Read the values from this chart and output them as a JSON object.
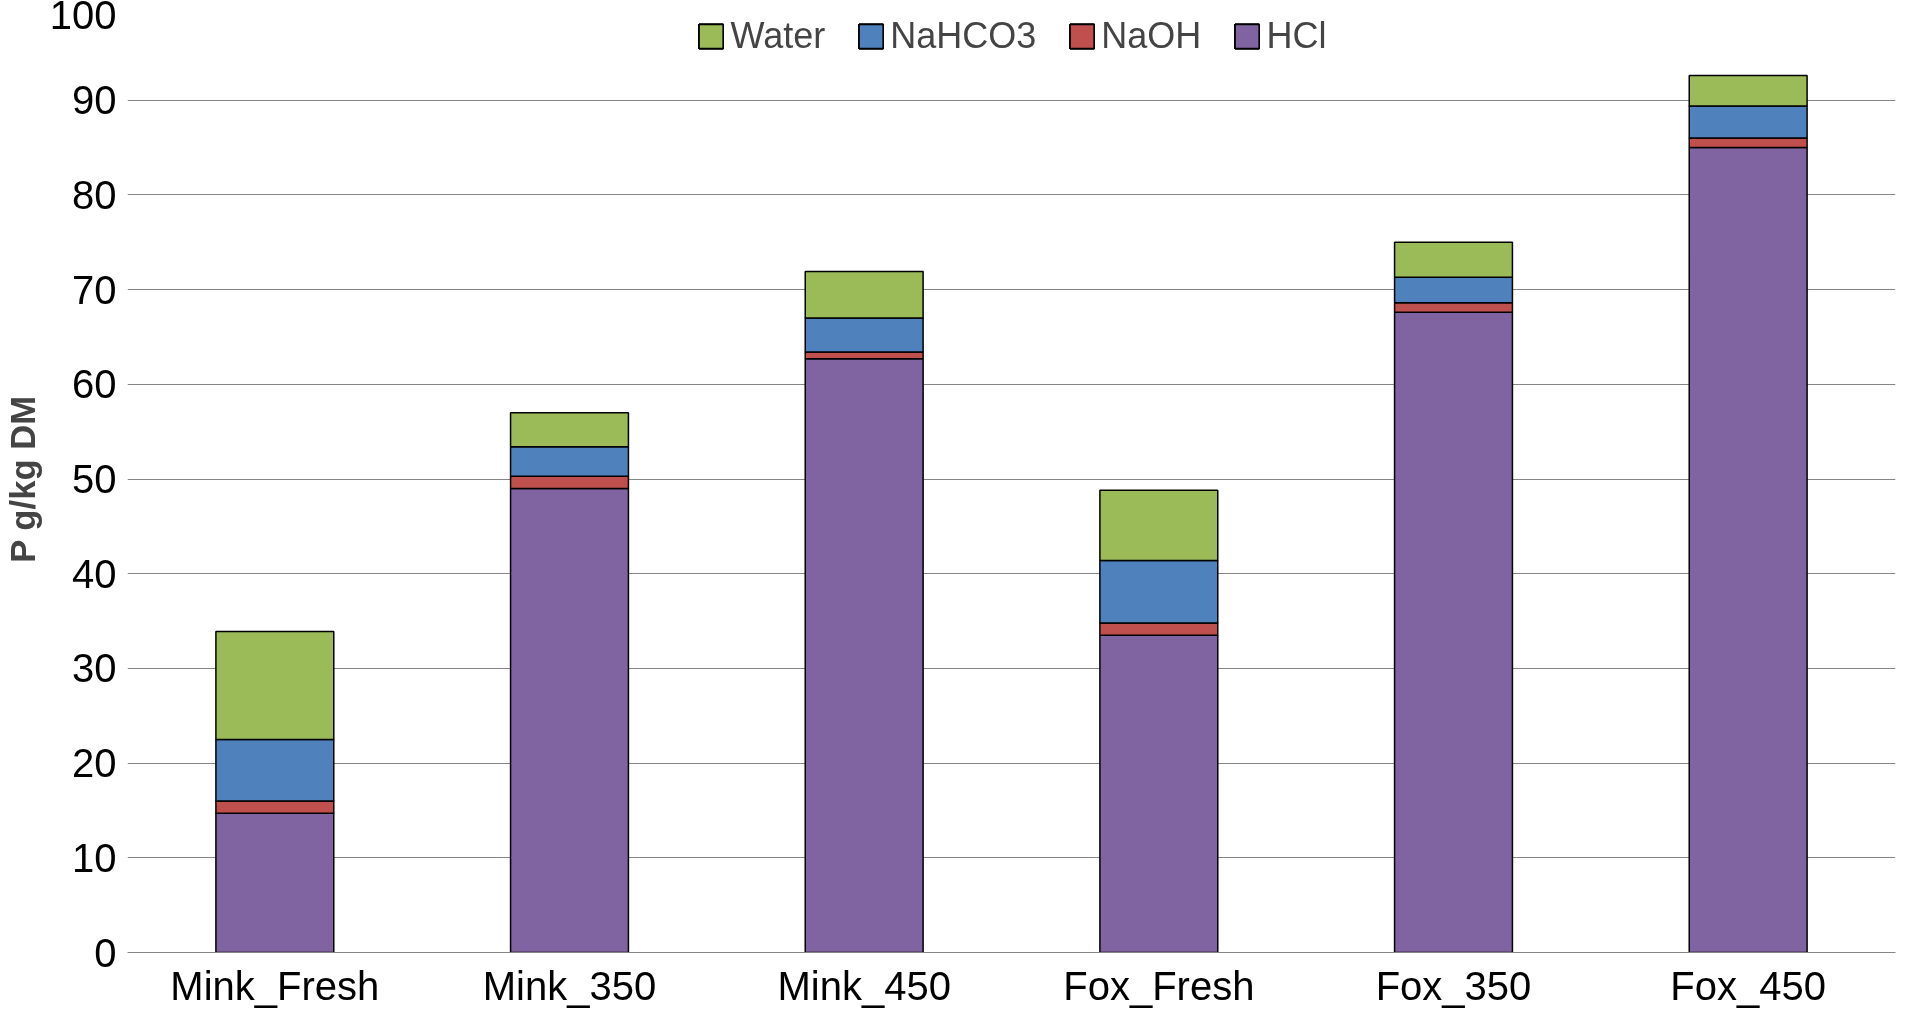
{
  "chart_data": {
    "type": "bar",
    "stacked": true,
    "ylabel": "P g/kg DM",
    "categories": [
      "Mink_Fresh",
      "Mink_350",
      "Mink_450",
      "Fox_Fresh",
      "Fox_350",
      "Fox_450"
    ],
    "series": [
      {
        "name": "HCl",
        "color": "#8064a2",
        "values": [
          14.7,
          49.0,
          62.7,
          33.5,
          67.6,
          85.0
        ]
      },
      {
        "name": "NaOH",
        "color": "#c0504d",
        "values": [
          1.3,
          1.3,
          0.7,
          1.3,
          1.0,
          1.0
        ]
      },
      {
        "name": "NaHCO3",
        "color": "#4f81bd",
        "values": [
          6.5,
          3.1,
          3.6,
          6.6,
          2.7,
          3.4
        ]
      },
      {
        "name": "Water",
        "color": "#9bbb59",
        "values": [
          11.4,
          3.6,
          4.9,
          7.4,
          3.7,
          3.2
        ]
      }
    ],
    "ylim": [
      0,
      100
    ],
    "yticks": [
      0,
      10,
      20,
      30,
      40,
      50,
      60,
      70,
      80,
      90,
      100
    ],
    "grid": "y",
    "legend": "top"
  }
}
